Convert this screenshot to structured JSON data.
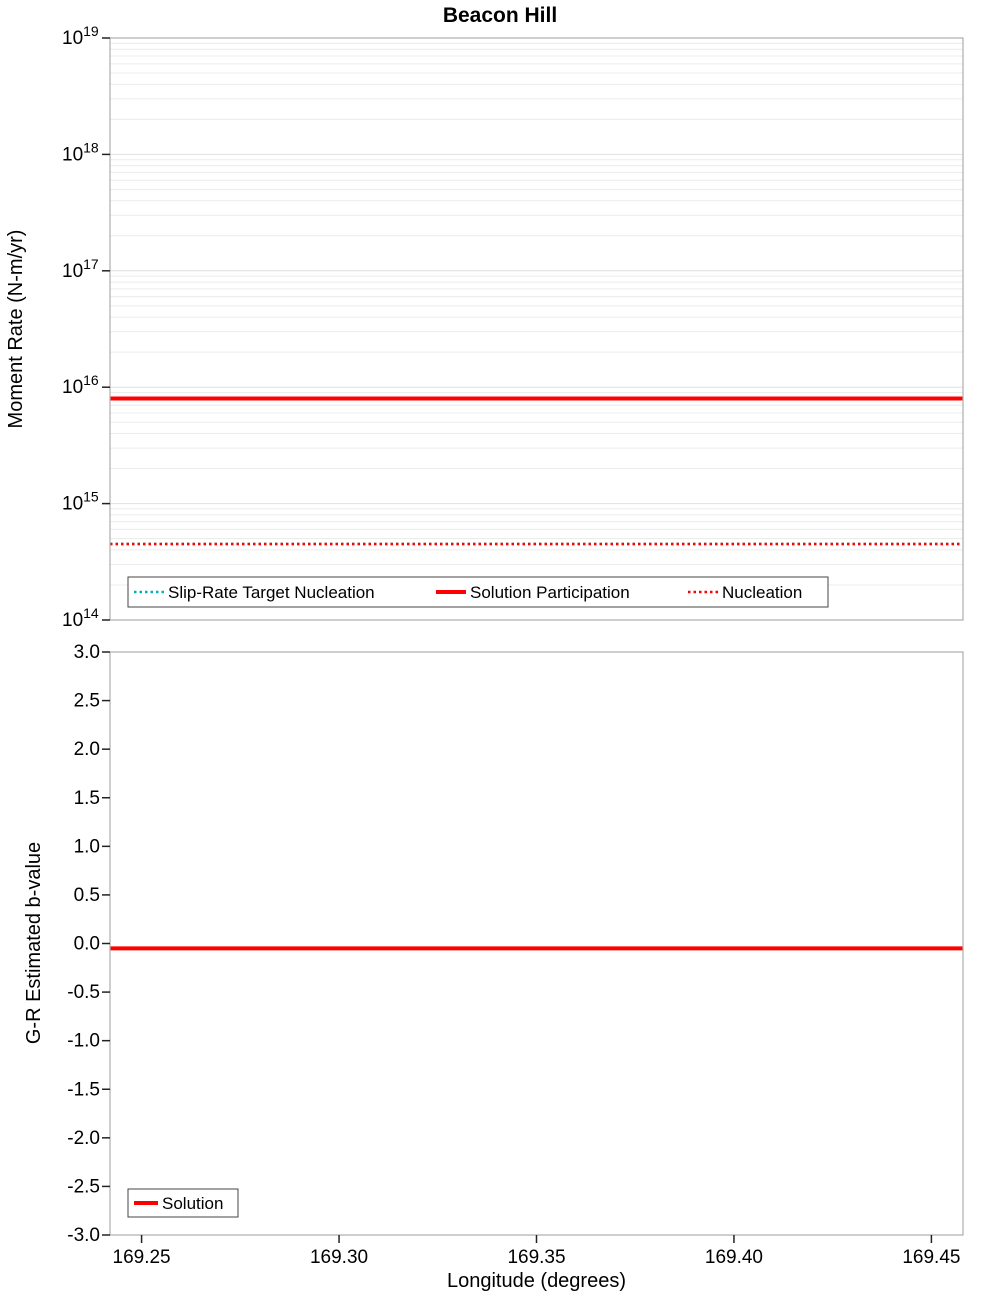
{
  "title": "Beacon Hill",
  "xlabel": "Longitude (degrees)",
  "chart_data": [
    {
      "type": "line",
      "title": "Beacon Hill",
      "ylabel": "Moment Rate (N-m/yr)",
      "yscale": "log",
      "ylim": [
        100000000000000.0,
        1e+19
      ],
      "ytick_exponents": [
        19,
        18,
        17,
        16,
        15,
        14
      ],
      "xlim": [
        169.242,
        169.458
      ],
      "xtick_labels": [
        "169.25",
        "169.30",
        "169.35",
        "169.40",
        "169.45"
      ],
      "xtick_values": [
        169.25,
        169.3,
        169.35,
        169.4,
        169.45
      ],
      "grid": "log-minor-horizontal",
      "legend_position": "lower-left",
      "series": [
        {
          "name": "Slip-Rate Target Nucleation",
          "color": "#00b2b8",
          "line": "dotted",
          "width": 2.5,
          "value": 450000000000000.0
        },
        {
          "name": "Solution Participation",
          "color": "#ff0000",
          "line": "solid",
          "width": 4,
          "value": 8000000000000000.0
        },
        {
          "name": "Nucleation",
          "color": "#ff0000",
          "line": "dotted",
          "width": 2.5,
          "value": 450000000000000.0
        }
      ]
    },
    {
      "type": "line",
      "ylabel": "G-R Estimated b-value",
      "yscale": "linear",
      "ylim": [
        -3.0,
        3.0
      ],
      "ytick_labels": [
        "3.0",
        "2.5",
        "2.0",
        "1.5",
        "1.0",
        "0.5",
        "0.0",
        "-0.5",
        "-1.0",
        "-1.5",
        "-2.0",
        "-2.5",
        "-3.0"
      ],
      "ytick_values": [
        3.0,
        2.5,
        2.0,
        1.5,
        1.0,
        0.5,
        0.0,
        -0.5,
        -1.0,
        -1.5,
        -2.0,
        -2.5,
        -3.0
      ],
      "xlabel": "Longitude (degrees)",
      "xlim": [
        169.242,
        169.458
      ],
      "xtick_labels": [
        "169.25",
        "169.30",
        "169.35",
        "169.40",
        "169.45"
      ],
      "xtick_values": [
        169.25,
        169.3,
        169.35,
        169.4,
        169.45
      ],
      "grid": "none",
      "legend_position": "lower-left",
      "series": [
        {
          "name": "Solution",
          "color": "#ff0000",
          "line": "solid",
          "width": 4,
          "value": -0.05
        }
      ]
    }
  ]
}
